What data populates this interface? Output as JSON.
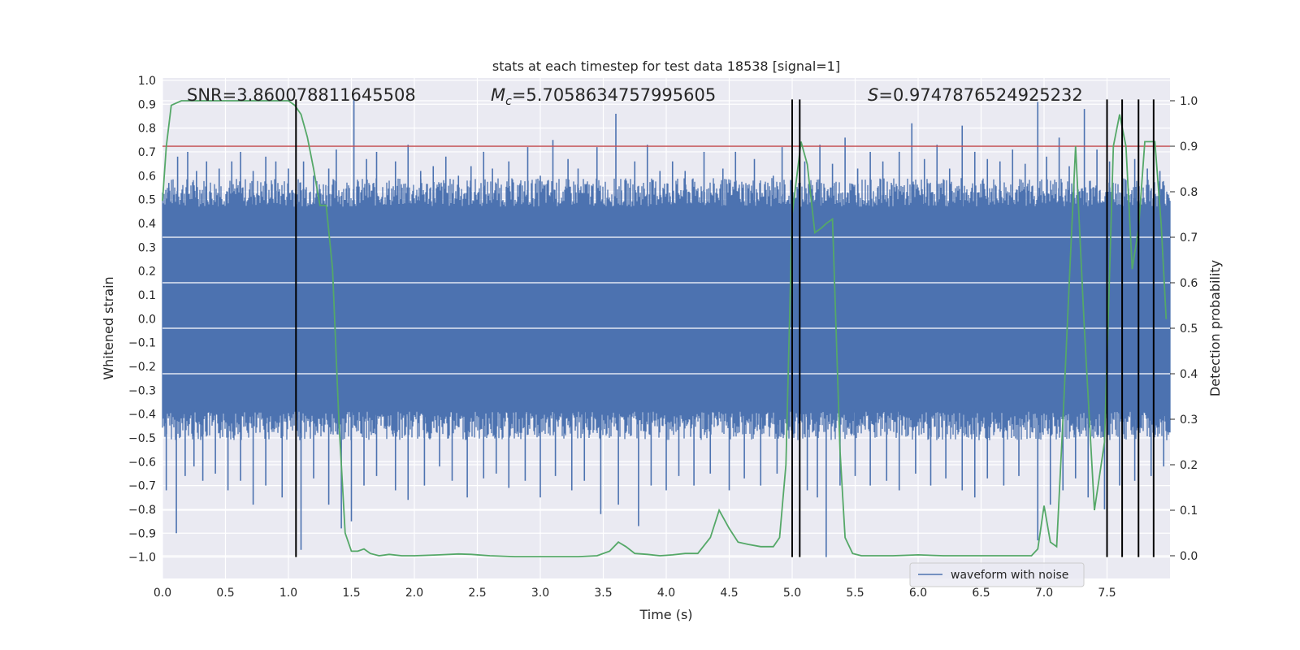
{
  "chart_data": {
    "type": "line",
    "title": "stats at each timestep for test data 18538 [signal=1]",
    "xlabel": "Time (s)",
    "ylabel": "Whitened strain",
    "y2label": "Detection probability",
    "xlim": [
      0.0,
      8.0
    ],
    "ylim": [
      -1.09,
      1.01
    ],
    "y2lim": [
      -0.05,
      1.05
    ],
    "xticks": [
      0.0,
      0.5,
      1.0,
      1.5,
      2.0,
      2.5,
      3.0,
      3.5,
      4.0,
      4.5,
      5.0,
      5.5,
      6.0,
      6.5,
      7.0,
      7.5
    ],
    "xtick_labels": [
      "0.0",
      "0.5",
      "1.0",
      "1.5",
      "2.0",
      "2.5",
      "3.0",
      "3.5",
      "4.0",
      "4.5",
      "5.0",
      "5.5",
      "6.0",
      "6.5",
      "7.0",
      "7.5"
    ],
    "yticks": [
      -1.0,
      -0.9,
      -0.8,
      -0.7,
      -0.6,
      -0.5,
      -0.4,
      -0.3,
      -0.2,
      -0.1,
      0.0,
      0.1,
      0.2,
      0.3,
      0.4,
      0.5,
      0.6,
      0.7,
      0.8,
      0.9,
      1.0
    ],
    "ytick_labels": [
      "−1.0",
      "−0.9",
      "−0.8",
      "−0.7",
      "−0.6",
      "−0.5",
      "−0.4",
      "−0.3",
      "−0.2",
      "−0.1",
      "0.0",
      "0.1",
      "0.2",
      "0.3",
      "0.4",
      "0.5",
      "0.6",
      "0.7",
      "0.8",
      "0.9",
      "1.0"
    ],
    "y2ticks": [
      0.0,
      0.1,
      0.2,
      0.3,
      0.4,
      0.5,
      0.6,
      0.7,
      0.8,
      0.9,
      1.0
    ],
    "y2tick_labels": [
      "0.0",
      "0.1",
      "0.2",
      "0.3",
      "0.4",
      "0.5",
      "0.6",
      "0.7",
      "0.8",
      "0.9",
      "1.0"
    ],
    "grid": true,
    "annotations": {
      "snr": "SNR=3.860078811645508",
      "mc_symbol": "M",
      "mc_sub": "c",
      "mc_value": "=5.7058634757995605",
      "s_symbol": "S",
      "s_value": "=0.9747876524925232"
    },
    "legend": {
      "entries": [
        "waveform with noise"
      ],
      "location": "lower-right"
    },
    "waveform": {
      "name": "waveform with noise",
      "color": "#4c72b0",
      "band_low": -0.47,
      "band_high": 0.55,
      "up_spikes": [
        [
          0.05,
          0.57
        ],
        [
          0.12,
          0.68
        ],
        [
          0.2,
          0.7
        ],
        [
          0.27,
          0.62
        ],
        [
          0.35,
          0.66
        ],
        [
          0.45,
          0.63
        ],
        [
          0.55,
          0.66
        ],
        [
          0.62,
          0.7
        ],
        [
          0.72,
          0.62
        ],
        [
          0.82,
          0.68
        ],
        [
          0.9,
          0.66
        ],
        [
          1.0,
          0.63
        ],
        [
          1.12,
          0.66
        ],
        [
          1.2,
          0.6
        ],
        [
          1.32,
          0.63
        ],
        [
          1.38,
          0.71
        ],
        [
          1.52,
          0.92
        ],
        [
          1.62,
          0.67
        ],
        [
          1.7,
          0.7
        ],
        [
          1.85,
          0.66
        ],
        [
          1.95,
          0.73
        ],
        [
          2.05,
          0.62
        ],
        [
          2.15,
          0.64
        ],
        [
          2.25,
          0.68
        ],
        [
          2.35,
          0.6
        ],
        [
          2.45,
          0.64
        ],
        [
          2.55,
          0.7
        ],
        [
          2.62,
          0.63
        ],
        [
          2.75,
          0.66
        ],
        [
          2.9,
          0.72
        ],
        [
          3.0,
          0.6
        ],
        [
          3.1,
          0.75
        ],
        [
          3.22,
          0.67
        ],
        [
          3.3,
          0.63
        ],
        [
          3.45,
          0.72
        ],
        [
          3.6,
          0.86
        ],
        [
          3.75,
          0.66
        ],
        [
          3.85,
          0.73
        ],
        [
          3.95,
          0.62
        ],
        [
          4.05,
          0.66
        ],
        [
          4.15,
          0.62
        ],
        [
          4.3,
          0.7
        ],
        [
          4.45,
          0.63
        ],
        [
          4.55,
          0.7
        ],
        [
          4.7,
          0.67
        ],
        [
          4.85,
          0.6
        ],
        [
          4.92,
          0.72
        ],
        [
          5.1,
          0.66
        ],
        [
          5.22,
          0.73
        ],
        [
          5.32,
          0.65
        ],
        [
          5.42,
          0.76
        ],
        [
          5.52,
          0.63
        ],
        [
          5.62,
          0.7
        ],
        [
          5.72,
          0.66
        ],
        [
          5.85,
          0.7
        ],
        [
          5.95,
          0.82
        ],
        [
          6.05,
          0.67
        ],
        [
          6.15,
          0.73
        ],
        [
          6.25,
          0.63
        ],
        [
          6.35,
          0.81
        ],
        [
          6.45,
          0.7
        ],
        [
          6.55,
          0.67
        ],
        [
          6.65,
          0.66
        ],
        [
          6.75,
          0.71
        ],
        [
          6.85,
          0.65
        ],
        [
          6.95,
          0.91
        ],
        [
          7.02,
          0.68
        ],
        [
          7.12,
          0.76
        ],
        [
          7.2,
          0.64
        ],
        [
          7.32,
          0.88
        ],
        [
          7.42,
          0.71
        ],
        [
          7.52,
          0.66
        ],
        [
          7.62,
          0.73
        ],
        [
          7.72,
          0.67
        ],
        [
          7.82,
          0.63
        ],
        [
          7.92,
          0.62
        ]
      ],
      "down_spikes": [
        [
          0.03,
          -0.72
        ],
        [
          0.11,
          -0.9
        ],
        [
          0.18,
          -0.66
        ],
        [
          0.25,
          -0.62
        ],
        [
          0.32,
          -0.68
        ],
        [
          0.42,
          -0.65
        ],
        [
          0.52,
          -0.72
        ],
        [
          0.62,
          -0.68
        ],
        [
          0.72,
          -0.78
        ],
        [
          0.82,
          -0.7
        ],
        [
          0.95,
          -0.75
        ],
        [
          1.1,
          -0.97
        ],
        [
          1.2,
          -0.67
        ],
        [
          1.32,
          -0.78
        ],
        [
          1.42,
          -0.88
        ],
        [
          1.5,
          -0.85
        ],
        [
          1.6,
          -0.7
        ],
        [
          1.7,
          -0.66
        ],
        [
          1.85,
          -0.72
        ],
        [
          1.95,
          -0.76
        ],
        [
          2.08,
          -0.7
        ],
        [
          2.2,
          -0.62
        ],
        [
          2.3,
          -0.68
        ],
        [
          2.42,
          -0.75
        ],
        [
          2.55,
          -0.67
        ],
        [
          2.65,
          -0.65
        ],
        [
          2.75,
          -0.71
        ],
        [
          2.88,
          -0.68
        ],
        [
          3.0,
          -0.75
        ],
        [
          3.12,
          -0.66
        ],
        [
          3.25,
          -0.72
        ],
        [
          3.35,
          -0.68
        ],
        [
          3.48,
          -0.82
        ],
        [
          3.62,
          -0.78
        ],
        [
          3.78,
          -0.87
        ],
        [
          3.88,
          -0.7
        ],
        [
          4.0,
          -0.72
        ],
        [
          4.1,
          -0.66
        ],
        [
          4.22,
          -0.7
        ],
        [
          4.35,
          -0.65
        ],
        [
          4.5,
          -0.72
        ],
        [
          4.62,
          -0.67
        ],
        [
          4.75,
          -0.7
        ],
        [
          4.88,
          -0.65
        ],
        [
          5.12,
          -0.72
        ],
        [
          5.2,
          -0.75
        ],
        [
          5.27,
          -1.0
        ],
        [
          5.38,
          -0.7
        ],
        [
          5.5,
          -0.66
        ],
        [
          5.62,
          -0.7
        ],
        [
          5.75,
          -0.68
        ],
        [
          5.85,
          -0.72
        ],
        [
          5.98,
          -0.65
        ],
        [
          6.1,
          -0.7
        ],
        [
          6.22,
          -0.67
        ],
        [
          6.35,
          -0.72
        ],
        [
          6.45,
          -0.75
        ],
        [
          6.55,
          -0.67
        ],
        [
          6.68,
          -0.7
        ],
        [
          6.8,
          -0.66
        ],
        [
          6.95,
          -0.93
        ],
        [
          7.05,
          -0.78
        ],
        [
          7.15,
          -0.72
        ],
        [
          7.25,
          -0.67
        ],
        [
          7.35,
          -0.75
        ],
        [
          7.48,
          -0.8
        ],
        [
          7.6,
          -0.7
        ],
        [
          7.72,
          -0.68
        ],
        [
          7.85,
          -0.66
        ],
        [
          7.95,
          -0.62
        ]
      ]
    },
    "detection_probability": {
      "color": "#55a868",
      "points": [
        [
          0.0,
          0.78
        ],
        [
          0.03,
          0.9
        ],
        [
          0.07,
          0.99
        ],
        [
          0.15,
          1.0
        ],
        [
          0.3,
          1.0
        ],
        [
          0.6,
          1.0
        ],
        [
          0.9,
          1.0
        ],
        [
          1.0,
          1.0
        ],
        [
          1.05,
          0.99
        ],
        [
          1.1,
          0.97
        ],
        [
          1.15,
          0.92
        ],
        [
          1.2,
          0.85
        ],
        [
          1.25,
          0.77
        ],
        [
          1.3,
          0.77
        ],
        [
          1.35,
          0.63
        ],
        [
          1.4,
          0.3
        ],
        [
          1.45,
          0.05
        ],
        [
          1.5,
          0.01
        ],
        [
          1.55,
          0.01
        ],
        [
          1.6,
          0.015
        ],
        [
          1.65,
          0.005
        ],
        [
          1.72,
          0.0
        ],
        [
          1.8,
          0.003
        ],
        [
          1.9,
          0.0
        ],
        [
          2.0,
          0.0
        ],
        [
          2.2,
          0.002
        ],
        [
          2.35,
          0.004
        ],
        [
          2.45,
          0.003
        ],
        [
          2.6,
          0.0
        ],
        [
          2.8,
          -0.002
        ],
        [
          3.0,
          -0.002
        ],
        [
          3.3,
          -0.002
        ],
        [
          3.45,
          0.0
        ],
        [
          3.55,
          0.01
        ],
        [
          3.62,
          0.03
        ],
        [
          3.68,
          0.02
        ],
        [
          3.75,
          0.005
        ],
        [
          3.85,
          0.003
        ],
        [
          3.95,
          0.0
        ],
        [
          4.05,
          0.002
        ],
        [
          4.15,
          0.005
        ],
        [
          4.25,
          0.005
        ],
        [
          4.35,
          0.04
        ],
        [
          4.42,
          0.1
        ],
        [
          4.5,
          0.06
        ],
        [
          4.57,
          0.03
        ],
        [
          4.65,
          0.025
        ],
        [
          4.75,
          0.02
        ],
        [
          4.85,
          0.02
        ],
        [
          4.9,
          0.04
        ],
        [
          4.95,
          0.2
        ],
        [
          5.0,
          0.75
        ],
        [
          5.07,
          0.91
        ],
        [
          5.12,
          0.86
        ],
        [
          5.18,
          0.71
        ],
        [
          5.23,
          0.72
        ],
        [
          5.27,
          0.73
        ],
        [
          5.32,
          0.74
        ],
        [
          5.38,
          0.23
        ],
        [
          5.42,
          0.04
        ],
        [
          5.48,
          0.005
        ],
        [
          5.55,
          0.0
        ],
        [
          5.8,
          0.0
        ],
        [
          6.0,
          0.002
        ],
        [
          6.2,
          0.0
        ],
        [
          6.5,
          0.0
        ],
        [
          6.8,
          0.0
        ],
        [
          6.9,
          0.0
        ],
        [
          6.95,
          0.015
        ],
        [
          7.0,
          0.11
        ],
        [
          7.05,
          0.03
        ],
        [
          7.1,
          0.02
        ],
        [
          7.15,
          0.3
        ],
        [
          7.2,
          0.6
        ],
        [
          7.25,
          0.9
        ],
        [
          7.32,
          0.5
        ],
        [
          7.4,
          0.1
        ],
        [
          7.48,
          0.25
        ],
        [
          7.55,
          0.9
        ],
        [
          7.6,
          0.97
        ],
        [
          7.65,
          0.9
        ],
        [
          7.7,
          0.63
        ],
        [
          7.75,
          0.72
        ],
        [
          7.8,
          0.91
        ],
        [
          7.88,
          0.91
        ],
        [
          7.93,
          0.73
        ],
        [
          7.97,
          0.52
        ]
      ]
    },
    "threshold": {
      "color": "#c44e52",
      "y2": 0.9
    },
    "event_lines": {
      "color": "#000000",
      "x": [
        1.06,
        5.0,
        5.06,
        7.5,
        7.62,
        7.75,
        7.87
      ],
      "y_from": -1.0,
      "y_to": 0.92
    }
  }
}
